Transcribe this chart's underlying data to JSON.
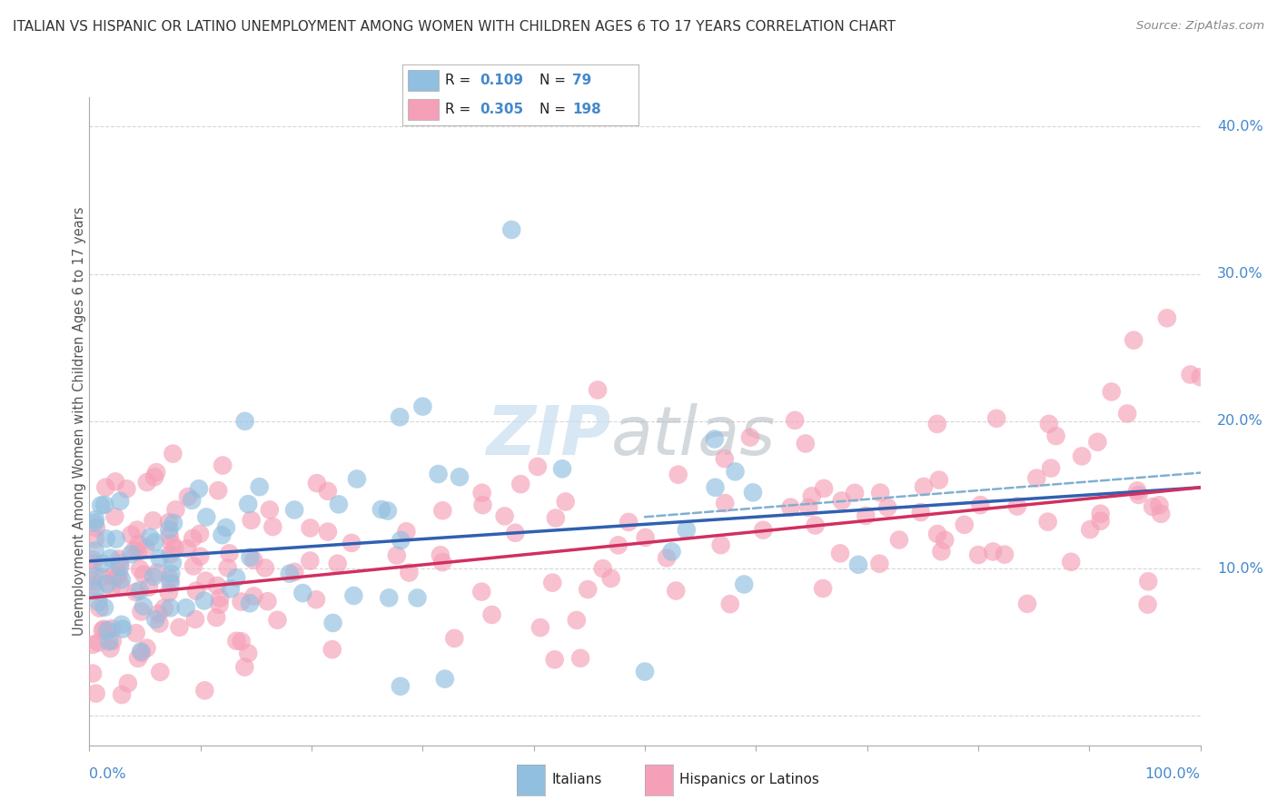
{
  "title": "ITALIAN VS HISPANIC OR LATINO UNEMPLOYMENT AMONG WOMEN WITH CHILDREN AGES 6 TO 17 YEARS CORRELATION CHART",
  "source": "Source: ZipAtlas.com",
  "ylabel": "Unemployment Among Women with Children Ages 6 to 17 years",
  "xlim": [
    0,
    100
  ],
  "ylim": [
    -2,
    42
  ],
  "yticks": [
    0,
    10,
    20,
    30,
    40
  ],
  "ytick_labels": [
    "",
    "10.0%",
    "20.0%",
    "30.0%",
    "40.0%"
  ],
  "italian_R": "0.109",
  "italian_N": "79",
  "hispanic_R": "0.305",
  "hispanic_N": "198",
  "blue_color": "#91bfe0",
  "pink_color": "#f5a0b8",
  "blue_line_color": "#3060b0",
  "pink_line_color": "#d03060",
  "blue_dashed_color": "#80b0d0",
  "legend_label_italian": "Italians",
  "legend_label_hispanic": "Hispanics or Latinos",
  "watermark": "ZIPatlas",
  "watermark_blue": "#c8ddf0",
  "watermark_gray": "#b0b8c0",
  "background_color": "#ffffff",
  "grid_color": "#cccccc",
  "title_color": "#333333",
  "axis_label_color": "#555555",
  "label_color_blue": "#4488cc",
  "it_line_y0": 10.5,
  "it_line_y100": 15.5,
  "hi_line_y0": 8.0,
  "hi_line_y100": 15.5,
  "it_dashed_y50": 13.5,
  "it_dashed_y100": 16.5
}
